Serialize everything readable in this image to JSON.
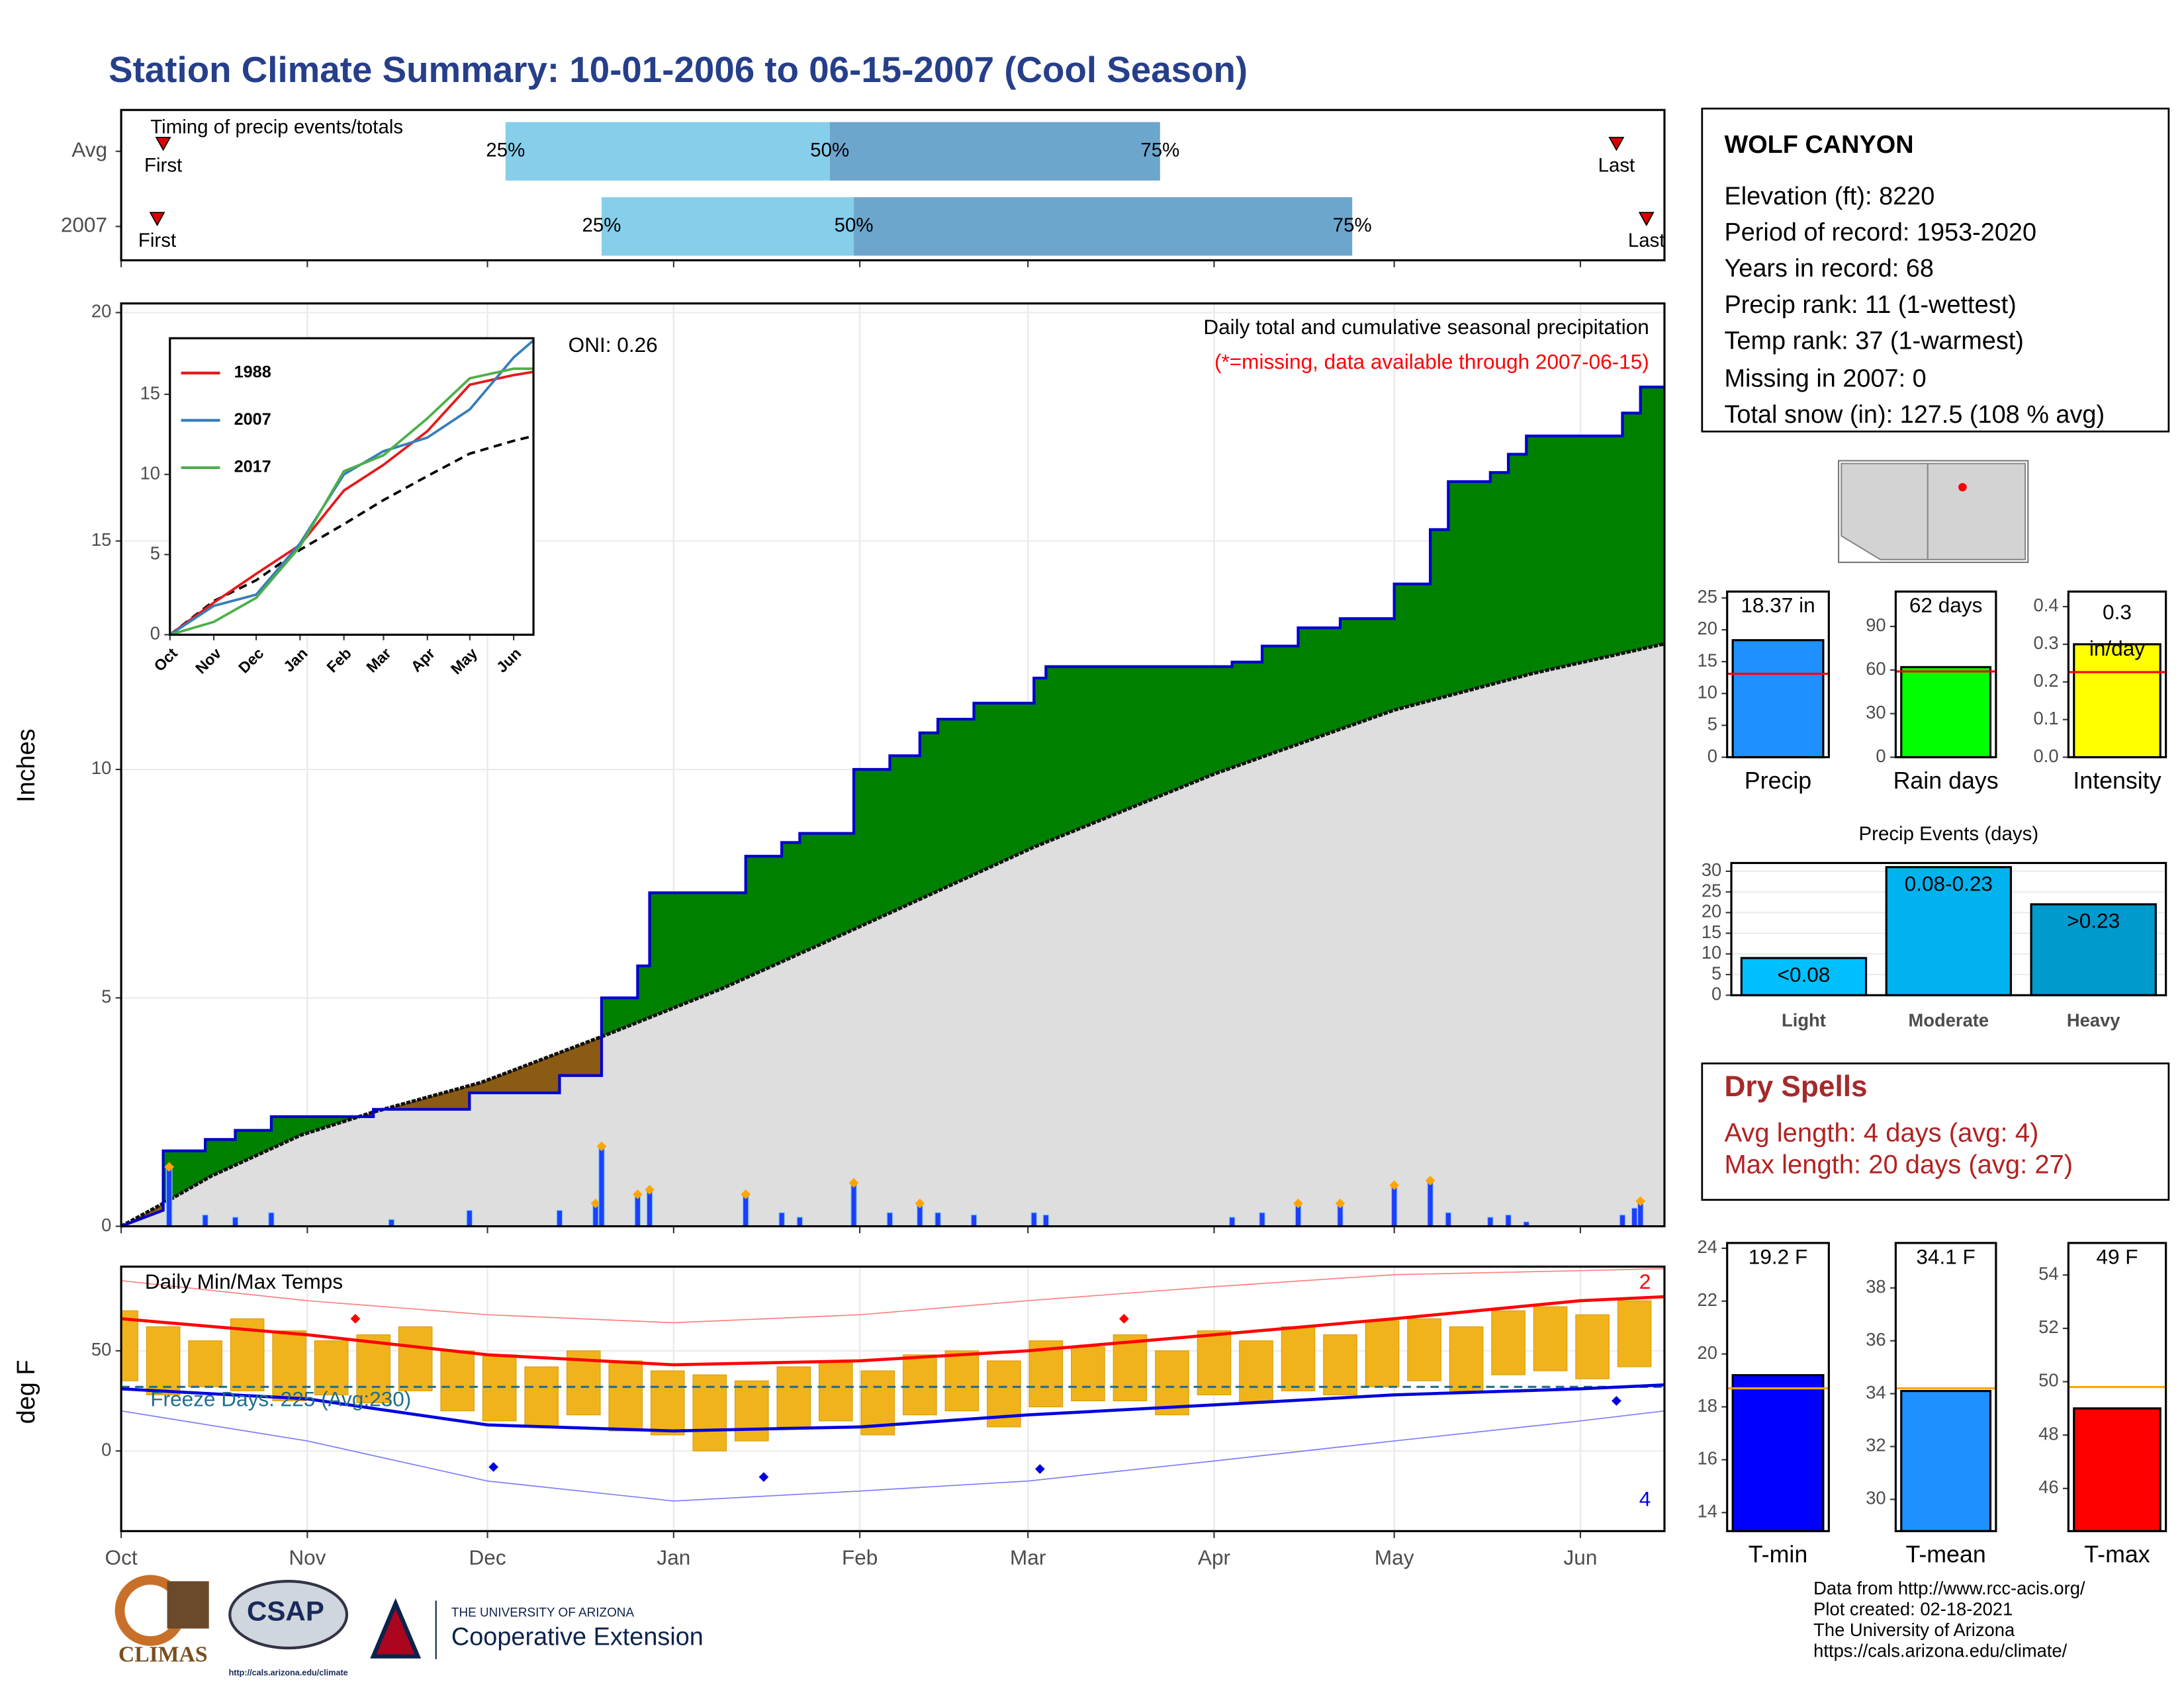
{
  "title": "Station Climate Summary: 10-01-2006 to 06-15-2007 (Cool Season)",
  "station": {
    "name": "WOLF CANYON",
    "lines": [
      "Elevation (ft): 8220",
      "Period of record: 1953-2020",
      "Years in record: 68",
      "Precip rank: 11 (1-wettest)",
      "Temp rank: 37 (1-warmest)",
      "Missing in 2007: 0",
      "Total snow (in): 127.5 (108 % avg)"
    ]
  },
  "dry_spells": {
    "title": "Dry Spells",
    "lines": [
      "Avg length: 4 days (avg: 4)",
      "Max length: 20 days (avg: 27)"
    ]
  },
  "footer": {
    "credits": [
      "Data from http://www.rcc-acis.org/",
      "Plot created: 02-18-2021",
      "The University of Arizona",
      "https://cals.arizona.edu/climate/"
    ]
  },
  "logos": {
    "climas": "CLIMAS",
    "csap": "CSAP",
    "csap_url": "http://cals.arizona.edu/climate",
    "ua_top": "THE UNIVERSITY OF ARIZONA",
    "ua_name": "Cooperative Extension"
  },
  "chart_data": [
    {
      "type": "timing",
      "title": "Timing of precip events/totals",
      "xlim": [
        0,
        257
      ],
      "rows": [
        {
          "name": "Avg",
          "first": 7,
          "q25": 64,
          "q50": 118,
          "q75": 173,
          "last": 249
        },
        {
          "name": "2007",
          "first": 6,
          "q25": 80,
          "q50": 122,
          "q75": 205,
          "last": 254
        }
      ],
      "quantile_labels": [
        "25%",
        "50%",
        "75%"
      ],
      "first_label": "First",
      "last_label": "Last",
      "colors": [
        "#87ceeb",
        "#6ca6cd"
      ],
      "marker_color": "#dd0000"
    },
    {
      "type": "precip",
      "title": "Daily total and cumulative seasonal precipitation",
      "subtitle": "(*=missing, data available through 2007-06-15)",
      "oni": "ONI: 0.26",
      "ylabel": "Inches",
      "xlim": [
        0,
        257
      ],
      "ylim": [
        0,
        20.2
      ],
      "yticks": [
        0,
        5,
        10,
        15,
        20
      ],
      "grid": true,
      "cumulative": {
        "color": "#0000cd",
        "x": [
          0,
          7,
          7,
          14,
          14,
          19,
          19,
          25,
          25,
          42,
          42,
          58,
          58,
          73,
          73,
          80,
          80,
          86,
          86,
          88,
          88,
          104,
          104,
          110,
          110,
          113,
          113,
          122,
          122,
          128,
          128,
          133,
          133,
          136,
          136,
          142,
          142,
          152,
          152,
          154,
          154,
          185,
          185,
          190,
          190,
          196,
          196,
          203,
          203,
          212,
          212,
          218,
          218,
          221,
          221,
          228,
          228,
          231,
          231,
          234,
          234,
          250,
          250,
          253,
          253,
          257
        ],
        "values": [
          0,
          0.35,
          1.65,
          1.65,
          1.9,
          1.9,
          2.1,
          2.1,
          2.4,
          2.4,
          2.56,
          2.56,
          2.92,
          2.92,
          3.3,
          3.3,
          5.0,
          5.0,
          5.7,
          5.7,
          7.3,
          7.3,
          8.1,
          8.1,
          8.4,
          8.4,
          8.6,
          8.6,
          10.0,
          10.0,
          10.3,
          10.3,
          10.8,
          10.8,
          11.1,
          11.1,
          11.45,
          11.45,
          12.0,
          12.0,
          12.25,
          12.25,
          12.35,
          12.35,
          12.7,
          12.7,
          13.1,
          13.1,
          13.3,
          13.3,
          14.06,
          14.06,
          15.25,
          15.25,
          16.3,
          16.3,
          16.5,
          16.5,
          16.9,
          16.9,
          17.3,
          17.3,
          17.8,
          17.8,
          18.37,
          18.37
        ]
      },
      "average": {
        "color": "#111111",
        "x": [
          0,
          7,
          15,
          30,
          42,
          60,
          80,
          100,
          122,
          152,
          182,
          212,
          235,
          257
        ],
        "values": [
          0,
          0.5,
          1.1,
          2.0,
          2.5,
          3.15,
          4.15,
          5.2,
          6.5,
          8.3,
          9.9,
          11.3,
          12.1,
          12.75
        ]
      },
      "daily": {
        "color": "#1f3dff",
        "edge": "#87cefa",
        "x": [
          8,
          14,
          19,
          25,
          45,
          58,
          73,
          79,
          80,
          86,
          88,
          104,
          110,
          113,
          122,
          128,
          133,
          136,
          142,
          152,
          154,
          185,
          190,
          196,
          203,
          212,
          218,
          221,
          228,
          231,
          234,
          250,
          252,
          253
        ],
        "values": [
          1.3,
          0.25,
          0.2,
          0.3,
          0.15,
          0.35,
          0.35,
          0.5,
          1.75,
          0.7,
          0.8,
          0.7,
          0.3,
          0.2,
          0.95,
          0.3,
          0.5,
          0.3,
          0.25,
          0.3,
          0.25,
          0.2,
          0.3,
          0.5,
          0.5,
          0.9,
          1.0,
          0.3,
          0.2,
          0.25,
          0.1,
          0.25,
          0.4,
          0.55
        ]
      },
      "above_color": "#008000",
      "below_color": "#8b5a14",
      "fill_color": "#dedede",
      "marker_color": "#ffa500"
    },
    {
      "type": "line",
      "xlim": [
        0,
        257
      ],
      "ylim": [
        0,
        18.5
      ],
      "yticks": [
        0,
        5,
        10,
        15
      ],
      "xticks": [
        {
          "value": 0,
          "label": "Oct"
        },
        {
          "value": 31,
          "label": "Nov"
        },
        {
          "value": 61,
          "label": "Dec"
        },
        {
          "value": 92,
          "label": "Jan"
        },
        {
          "value": 123,
          "label": "Feb"
        },
        {
          "value": 151,
          "label": "Mar"
        },
        {
          "value": 182,
          "label": "Apr"
        },
        {
          "value": 212,
          "label": "May"
        },
        {
          "value": 243,
          "label": "Jun"
        }
      ],
      "x": [
        0,
        31,
        61,
        92,
        123,
        151,
        182,
        212,
        243,
        257
      ],
      "series": [
        {
          "name": "1988",
          "color": "#e41a1c",
          "values": [
            0,
            2.0,
            3.8,
            5.6,
            9.0,
            10.6,
            12.7,
            15.6,
            16.2,
            16.4
          ]
        },
        {
          "name": "2007",
          "color": "#377eb8",
          "values": [
            0,
            1.8,
            2.5,
            5.7,
            10.0,
            11.45,
            12.3,
            14.06,
            17.3,
            18.37
          ]
        },
        {
          "name": "2017",
          "color": "#4daf4a",
          "values": [
            0,
            0.8,
            2.3,
            5.5,
            10.2,
            11.2,
            13.5,
            16.0,
            16.6,
            16.6
          ]
        }
      ],
      "average": {
        "color": "#000000",
        "values": [
          0,
          2.1,
          3.4,
          5.3,
          6.9,
          8.4,
          9.9,
          11.3,
          12.1,
          12.4
        ]
      }
    },
    {
      "type": "temps",
      "title": "Daily Min/Max Temps",
      "ylabel": "deg F",
      "xlim": [
        0,
        257
      ],
      "ylim": [
        -40,
        92
      ],
      "yticks": [
        0,
        50
      ],
      "grid": true,
      "xticks": [
        {
          "value": 0,
          "label": "Oct"
        },
        {
          "value": 31,
          "label": "Nov"
        },
        {
          "value": 61,
          "label": "Dec"
        },
        {
          "value": 92,
          "label": "Jan"
        },
        {
          "value": 123,
          "label": "Feb"
        },
        {
          "value": 151,
          "label": "Mar"
        },
        {
          "value": 182,
          "label": "Apr"
        },
        {
          "value": 212,
          "label": "May"
        },
        {
          "value": 243,
          "label": "Jun"
        }
      ],
      "daily": {
        "color": "#f1b31c",
        "x": [
          0,
          7,
          14,
          21,
          28,
          35,
          42,
          49,
          56,
          63,
          70,
          77,
          84,
          91,
          98,
          105,
          112,
          119,
          126,
          133,
          140,
          147,
          154,
          161,
          168,
          175,
          182,
          189,
          196,
          203,
          210,
          217,
          224,
          231,
          238,
          245,
          252
        ],
        "max": [
          70,
          62,
          55,
          66,
          60,
          55,
          58,
          62,
          50,
          48,
          42,
          50,
          45,
          40,
          38,
          35,
          42,
          45,
          40,
          48,
          50,
          45,
          55,
          52,
          58,
          50,
          60,
          55,
          62,
          58,
          65,
          66,
          62,
          70,
          72,
          68,
          75
        ],
        "min": [
          35,
          28,
          32,
          30,
          25,
          28,
          24,
          30,
          20,
          15,
          12,
          18,
          10,
          8,
          0,
          5,
          12,
          15,
          8,
          18,
          20,
          12,
          22,
          25,
          25,
          18,
          28,
          24,
          30,
          28,
          32,
          35,
          30,
          38,
          40,
          36,
          42
        ]
      },
      "avg_max": {
        "color": "#ff0000",
        "x": [
          0,
          31,
          61,
          92,
          123,
          151,
          182,
          212,
          243,
          257
        ],
        "values": [
          66,
          58,
          48,
          43,
          45,
          50,
          58,
          66,
          75,
          77
        ]
      },
      "avg_min": {
        "color": "#0000dd",
        "x": [
          0,
          31,
          61,
          92,
          123,
          151,
          182,
          212,
          243,
          257
        ],
        "values": [
          31,
          26,
          13,
          10,
          12,
          18,
          23,
          28,
          31,
          33
        ]
      },
      "record_max": {
        "color": "#ff8080",
        "x": [
          0,
          31,
          61,
          92,
          123,
          151,
          182,
          212,
          243,
          257
        ],
        "values": [
          85,
          75,
          68,
          64,
          68,
          75,
          82,
          88,
          90,
          91
        ]
      },
      "record_min": {
        "color": "#7b7bff",
        "x": [
          0,
          31,
          61,
          92,
          123,
          151,
          182,
          212,
          243,
          257
        ],
        "values": [
          20,
          5,
          -15,
          -25,
          -20,
          -15,
          -5,
          5,
          15,
          20
        ]
      },
      "freeze": {
        "value": 32,
        "label": "Freeze Days: 225 (Avg:230)",
        "color": "#1f6e8c"
      },
      "record_highs": {
        "color": "#ff0000",
        "count": 2,
        "x": [
          39,
          167
        ],
        "values": [
          66,
          66
        ]
      },
      "record_lows": {
        "color": "#0000dd",
        "count": 4,
        "x": [
          62,
          107,
          153,
          249
        ],
        "values": [
          -8,
          -13,
          -9,
          25
        ]
      }
    },
    {
      "type": "summary",
      "category": "Precip",
      "value": 18.37,
      "value_label": "18.37 in",
      "average": 13.1,
      "ylim": [
        0,
        26
      ],
      "yticks": [
        0,
        5,
        10,
        15,
        20,
        25
      ],
      "color": "#1e90ff",
      "average_color": "#ff0000"
    },
    {
      "type": "summary",
      "category": "Rain days",
      "value": 62,
      "value_label": "62 days",
      "average": 59,
      "ylim": [
        0,
        114
      ],
      "yticks": [
        0,
        30,
        60,
        90
      ],
      "color": "#00ff00",
      "average_color": "#ff0000"
    },
    {
      "type": "summary",
      "category": "Intensity",
      "value": 0.3,
      "value_label": "0.3",
      "unit": "in/day",
      "average": 0.226,
      "ylim": [
        0,
        0.44
      ],
      "yticks": [
        {
          "value": 0,
          "label": "0.0"
        },
        0.1,
        0.2,
        0.3,
        0.4
      ],
      "color": "#ffff00",
      "average_color": "#ff0000"
    },
    {
      "type": "bar",
      "title": "Precip Events (days)",
      "categories": [
        "Light",
        "Moderate",
        "Heavy"
      ],
      "values": [
        9,
        31,
        22
      ],
      "bin_labels": [
        "<0.08",
        "0.08-0.23",
        ">0.23"
      ],
      "colors": [
        "#00bfff",
        "#00b2ee",
        "#009acd"
      ],
      "ylim": [
        0,
        32
      ],
      "yticks": [
        0,
        5,
        10,
        15,
        20,
        25,
        30
      ],
      "grid": true
    },
    {
      "type": "summary",
      "category": "T-min",
      "value": 19.2,
      "value_label": "19.2 F",
      "average": 18.7,
      "ylim": [
        13.3,
        24.2
      ],
      "yticks": [
        14,
        16,
        18,
        20,
        22,
        24
      ],
      "color": "#0000ff",
      "average_color": "#ffa500"
    },
    {
      "type": "summary",
      "category": "T-mean",
      "value": 34.1,
      "value_label": "34.1 F",
      "average": 34.2,
      "ylim": [
        28.8,
        39.7
      ],
      "yticks": [
        30,
        32,
        34,
        36,
        38
      ],
      "color": "#1e90ff",
      "average_color": "#ffa500"
    },
    {
      "type": "summary",
      "category": "T-max",
      "value": 49,
      "value_label": "49 F",
      "average": 49.8,
      "ylim": [
        44.4,
        55.2
      ],
      "yticks": [
        46,
        48,
        50,
        52,
        54
      ],
      "color": "#ff0000",
      "average_color": "#ffa500"
    }
  ]
}
